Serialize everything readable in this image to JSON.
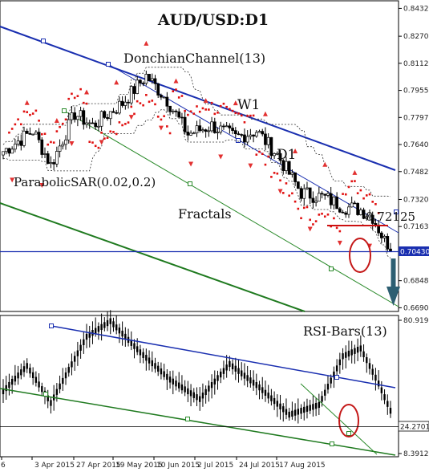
{
  "chart_data": [
    {
      "type": "candlestick",
      "title": "AUD/USD:D1",
      "ylim": [
        0.6669,
        0.8476
      ],
      "y_ticks": [
        "0.84320",
        "0.82700",
        "0.81125",
        "0.79550",
        "0.77975",
        "0.76400",
        "0.74825",
        "0.73205",
        "0.71630",
        "0.70430",
        "0.68480",
        "0.66905"
      ],
      "current_price": "0.70430",
      "annotations": {
        "donchian": "DonchianChannel(13)",
        "w1": "W1",
        "d1": "D1",
        "sar": "ParabolicSAR(0.02,0.2)",
        "fractals": "Fractals",
        "level": "0.72125"
      }
    },
    {
      "type": "line",
      "title": "RSI-Bars(13)",
      "y_ticks": [
        "80.9191",
        "24.2701",
        "8.3912"
      ],
      "ylim": [
        8.3912,
        80.9191
      ],
      "current_value": "24.2701"
    }
  ],
  "x_ticks": [
    "6",
    "3 Apr 2015",
    "27 Apr 2015",
    "19 May 2015",
    "10 Jun 2015",
    "2 Jul 2015",
    "24 Jul 2015",
    "17 Aug 2015"
  ]
}
